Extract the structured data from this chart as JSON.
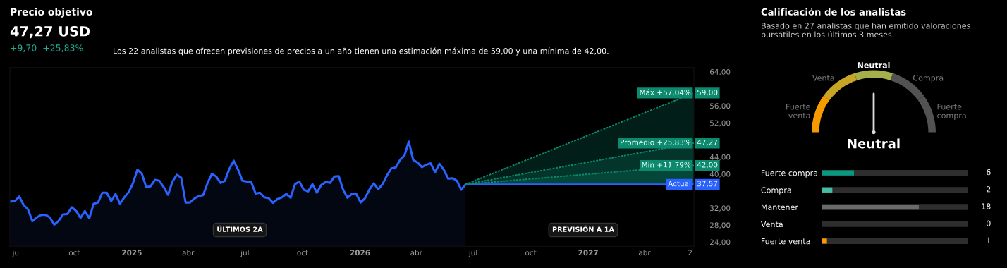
{
  "chart_data": [
    {
      "type": "line",
      "title": "Precio objetivo",
      "subtitle": "47,27 USD",
      "annotations": [
        "+9,70  +25,83%",
        "Los 22 analistas que ofrecen previsiones de precios a un año tienen una estimación máxima de 59,00 y una mínima de 42,00.",
        "ÚLTIMOS 2A",
        "PREVISIÓN A 1A"
      ],
      "xlim": [
        "2024-06-20",
        "2027-06-19"
      ],
      "xticks": [
        {
          "value": "2024-07-01",
          "label": "jul"
        },
        {
          "value": "2024-10-01",
          "label": "oct"
        },
        {
          "value": "2025-01-01",
          "label": "2025"
        },
        {
          "value": "2025-04-01",
          "label": "abr"
        },
        {
          "value": "2025-07-01",
          "label": "jul"
        },
        {
          "value": "2025-10-01",
          "label": "oct"
        },
        {
          "value": "2026-01-01",
          "label": "2026"
        },
        {
          "value": "2026-04-01",
          "label": "abr"
        },
        {
          "value": "2026-07-01",
          "label": "jul"
        },
        {
          "value": "2026-10-01",
          "label": "oct"
        },
        {
          "value": "2027-01-01",
          "label": "2027"
        },
        {
          "value": "2027-04-01",
          "label": "abr"
        },
        {
          "value": "2027-06-13",
          "label": "2"
        }
      ],
      "ylim": [
        23,
        65
      ],
      "legend": "right",
      "yticks": [
        {
          "value": 24,
          "label": "24,00"
        },
        {
          "value": 28,
          "label": "28,00"
        },
        {
          "value": 32,
          "label": "32,00"
        },
        {
          "value": 40,
          "label": "40,00"
        },
        {
          "value": 44,
          "label": "44,00"
        },
        {
          "value": 52,
          "label": "52,00"
        },
        {
          "value": 56,
          "label": "56,00"
        },
        {
          "value": 64,
          "label": "64,00"
        }
      ],
      "series": [
        {
          "type": "area",
          "color": "#2962ff",
          "x": [
            "2024-06-21",
            "2024-06-28",
            "2024-07-05",
            "2024-07-12",
            "2024-07-19",
            "2024-07-26",
            "2024-08-02",
            "2024-08-09",
            "2024-08-16",
            "2024-08-23",
            "2024-08-30",
            "2024-09-06",
            "2024-09-13",
            "2024-09-20",
            "2024-09-27",
            "2024-10-04",
            "2024-10-11",
            "2024-10-18",
            "2024-10-25",
            "2024-11-01",
            "2024-11-08",
            "2024-11-15",
            "2024-11-22",
            "2024-11-29",
            "2024-12-06",
            "2024-12-13",
            "2024-12-20",
            "2024-12-27",
            "2025-01-03",
            "2025-01-10",
            "2025-01-17",
            "2025-01-24",
            "2025-01-31",
            "2025-02-07",
            "2025-02-14",
            "2025-02-21",
            "2025-02-28",
            "2025-03-07",
            "2025-03-14",
            "2025-03-21",
            "2025-03-28",
            "2025-04-04",
            "2025-04-11",
            "2025-04-18",
            "2025-04-25",
            "2025-05-02",
            "2025-05-09",
            "2025-05-16",
            "2025-05-23",
            "2025-05-30",
            "2025-06-06",
            "2025-06-13",
            "2025-06-20",
            "2025-06-27",
            "2025-07-04",
            "2025-07-11",
            "2025-07-18",
            "2025-07-25",
            "2025-08-01",
            "2025-08-08",
            "2025-08-15",
            "2025-08-22",
            "2025-08-29",
            "2025-09-05",
            "2025-09-12",
            "2025-09-19",
            "2025-09-26",
            "2025-10-03",
            "2025-10-10",
            "2025-10-17",
            "2025-10-24",
            "2025-10-31",
            "2025-11-07",
            "2025-11-14",
            "2025-11-21",
            "2025-11-28",
            "2025-12-05",
            "2025-12-12",
            "2025-12-19",
            "2025-12-26",
            "2026-01-02",
            "2026-01-09",
            "2026-01-16",
            "2026-01-23",
            "2026-01-30",
            "2026-02-06",
            "2026-02-13",
            "2026-02-20",
            "2026-02-27",
            "2026-03-06",
            "2026-03-13",
            "2026-03-20",
            "2026-03-27",
            "2026-04-03",
            "2026-04-10",
            "2026-04-17",
            "2026-04-24",
            "2026-05-01",
            "2026-05-08",
            "2026-05-15",
            "2026-05-22",
            "2026-05-29",
            "2026-06-05",
            "2026-06-12",
            "2026-06-19"
          ],
          "values": [
            33.5,
            33.6,
            34.7,
            32.7,
            31.7,
            28.9,
            29.8,
            30.4,
            30.4,
            29.8,
            28.1,
            29.0,
            30.5,
            30.6,
            32.2,
            31.3,
            29.7,
            31.3,
            29.6,
            33.0,
            33.3,
            35.6,
            35.6,
            33.6,
            35.3,
            33.0,
            34.5,
            35.7,
            37.9,
            41.0,
            40.1,
            36.9,
            37.1,
            38.6,
            38.4,
            36.9,
            35.1,
            38.2,
            39.8,
            39.1,
            33.3,
            33.3,
            34.2,
            34.8,
            35.0,
            37.8,
            40.0,
            39.4,
            37.9,
            38.4,
            41.2,
            43.1,
            41.0,
            38.4,
            38.2,
            38.1,
            35.4,
            35.6,
            34.5,
            34.3,
            33.2,
            34.1,
            34.5,
            35.3,
            34.4,
            37.6,
            38.2,
            36.3,
            35.9,
            37.6,
            35.6,
            37.4,
            38.1,
            37.9,
            39.4,
            39.5,
            36.3,
            34.4,
            35.3,
            35.3,
            33.3,
            34.3,
            36.3,
            37.8,
            36.4,
            37.6,
            39.6,
            41.3,
            41.5,
            43.3,
            44.3,
            47.6,
            43.3,
            42.7,
            41.6,
            42.2,
            42.5,
            40.4,
            42.4,
            41.0,
            38.9,
            39.0,
            38.4,
            36.3,
            37.57
          ]
        },
        {
          "type": "line",
          "name": "Máx +57,04%",
          "color": "#0b8a6e",
          "line_style": "dotted",
          "x": [
            "2026-06-19",
            "2027-06-19"
          ],
          "values": [
            37.57,
            59
          ],
          "value_labels": [
            null,
            "59,00"
          ]
        },
        {
          "type": "line",
          "name": "Promedio +25,83%",
          "color": "#0b8a6e",
          "line_style": "dotted",
          "x": [
            "2026-06-19",
            "2027-06-19"
          ],
          "values": [
            37.57,
            47.27
          ],
          "value_labels": [
            null,
            "47,27"
          ]
        },
        {
          "type": "line",
          "name": "Mín +11,79%",
          "color": "#0b8a6e",
          "line_style": "dotted",
          "x": [
            "2026-06-19",
            "2027-06-19"
          ],
          "values": [
            37.57,
            42
          ],
          "value_labels": [
            null,
            "42,00"
          ]
        },
        {
          "type": "line",
          "name": "Actual",
          "color": "#2962ff",
          "line_style": "solid",
          "x": [
            "2026-06-19",
            "2027-06-19"
          ],
          "values": [
            37.57,
            37.57
          ],
          "value_labels": [
            null,
            "37,57"
          ]
        }
      ]
    },
    {
      "type": "donut",
      "title": "Calificación de los analistas",
      "subtitle": "Basado en 27 analistas que han emitido valoraciones bursátiles en los últimos 3 meses.",
      "categories": [
        "Fuerte venta",
        "Venta",
        "Neutral",
        "Compra",
        "Fuerte compra"
      ],
      "values": [
        20,
        20,
        20,
        20,
        20
      ],
      "colors": [
        "#f59b00",
        "#c9a526",
        "#a5b04a",
        "#525252",
        "#525252"
      ],
      "needle": "Neutral",
      "annotations": [
        "Neutral"
      ]
    },
    {
      "type": "bar",
      "orientation": "horizontal",
      "categories": [
        "Fuerte compra",
        "Compra",
        "Mantener",
        "Venta",
        "Fuerte venta"
      ],
      "values": [
        6,
        2,
        18,
        0,
        1
      ],
      "colors": [
        "#089981",
        "#42bda8",
        "#6a6a6a",
        "#5a5a5a",
        "#ff9800"
      ],
      "data_labels": true,
      "xlim": [
        0,
        27
      ],
      "tick_labels": "y"
    }
  ]
}
